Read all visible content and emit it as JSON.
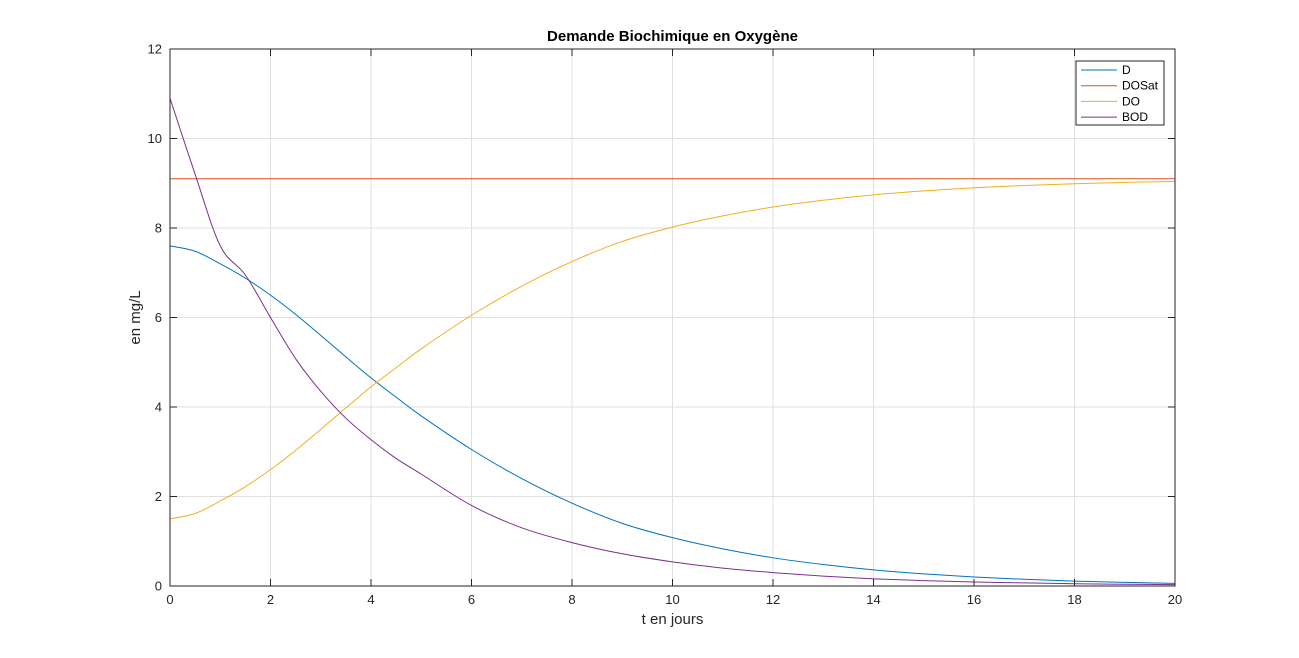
{
  "chart_data": {
    "type": "line",
    "title": "Demande Biochimique en Oxygène",
    "xlabel": "t en jours",
    "ylabel": "en mg/L",
    "xlim": [
      0,
      20
    ],
    "ylim": [
      0,
      12
    ],
    "xticks": [
      0,
      2,
      4,
      6,
      8,
      10,
      12,
      14,
      16,
      18,
      20
    ],
    "yticks": [
      0,
      2,
      4,
      6,
      8,
      10,
      12
    ],
    "grid": true,
    "legend_position": "top-right",
    "x": [
      0,
      0.5,
      1,
      1.5,
      2,
      2.5,
      3,
      3.5,
      4,
      4.5,
      5,
      6,
      7,
      8,
      9,
      10,
      11,
      12,
      13,
      14,
      15,
      16,
      17,
      18,
      19,
      20
    ],
    "series": [
      {
        "name": "D",
        "color": "#0072BD",
        "values": [
          7.6,
          7.48,
          7.2,
          6.88,
          6.5,
          6.07,
          5.6,
          5.12,
          4.65,
          4.22,
          3.8,
          3.05,
          2.4,
          1.85,
          1.4,
          1.08,
          0.83,
          0.63,
          0.48,
          0.36,
          0.27,
          0.2,
          0.15,
          0.11,
          0.08,
          0.06
        ]
      },
      {
        "name": "DOSat",
        "color": "#D95319",
        "values": [
          9.1,
          9.1,
          9.1,
          9.1,
          9.1,
          9.1,
          9.1,
          9.1,
          9.1,
          9.1,
          9.1,
          9.1,
          9.1,
          9.1,
          9.1,
          9.1,
          9.1,
          9.1,
          9.1,
          9.1,
          9.1,
          9.1,
          9.1,
          9.1,
          9.1,
          9.1
        ]
      },
      {
        "name": "DO",
        "color": "#EDB120",
        "values": [
          1.5,
          1.62,
          1.9,
          2.22,
          2.6,
          3.03,
          3.5,
          3.98,
          4.45,
          4.88,
          5.3,
          6.05,
          6.7,
          7.25,
          7.7,
          8.02,
          8.27,
          8.47,
          8.62,
          8.74,
          8.83,
          8.9,
          8.95,
          8.99,
          9.02,
          9.04
        ]
      },
      {
        "name": "BOD",
        "color": "#7E2F8E",
        "values": [
          10.9,
          9.2,
          7.6,
          6.95,
          6.0,
          5.08,
          4.35,
          3.75,
          3.27,
          2.85,
          2.5,
          1.8,
          1.3,
          0.97,
          0.72,
          0.54,
          0.4,
          0.3,
          0.22,
          0.16,
          0.12,
          0.09,
          0.07,
          0.05,
          0.04,
          0.03
        ]
      }
    ]
  }
}
